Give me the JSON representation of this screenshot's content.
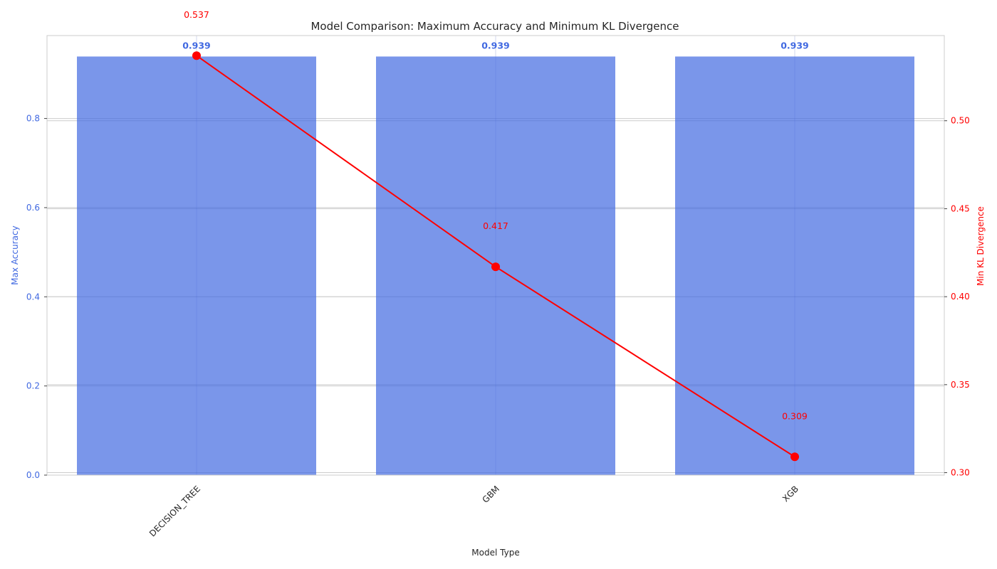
{
  "chart_data": {
    "type": "bar",
    "title": "Model Comparison: Maximum Accuracy and Minimum KL Divergence",
    "xlabel": "Model Type",
    "categories": [
      "DECISION_TREE",
      "GBM",
      "XGB"
    ],
    "series": [
      {
        "name": "Max Accuracy",
        "axis": "left",
        "type": "bar",
        "values": [
          0.939,
          0.939,
          0.939
        ],
        "labels": [
          "0.939",
          "0.939",
          "0.939"
        ],
        "color": "#4169e1"
      },
      {
        "name": "Min KL Divergence",
        "axis": "right",
        "type": "line",
        "values": [
          0.537,
          0.417,
          0.309
        ],
        "labels": [
          "0.537",
          "0.417",
          "0.309"
        ],
        "color": "#ff0000"
      }
    ],
    "y_left": {
      "label": "Max Accuracy",
      "range": [
        0,
        0.986
      ],
      "ticks": [
        0.0,
        0.2,
        0.4,
        0.6,
        0.8
      ],
      "tick_labels": [
        "0.0",
        "0.2",
        "0.4",
        "0.6",
        "0.8"
      ],
      "color": "#4169e1"
    },
    "y_right": {
      "label": "Min KL Divergence",
      "range": [
        0.2986,
        0.5484
      ],
      "ticks": [
        0.3,
        0.35,
        0.4,
        0.45,
        0.5
      ],
      "tick_labels": [
        "0.30",
        "0.35",
        "0.40",
        "0.45",
        "0.50"
      ],
      "color": "#ff0000"
    },
    "grid": true,
    "x_tick_rotation": 45
  }
}
